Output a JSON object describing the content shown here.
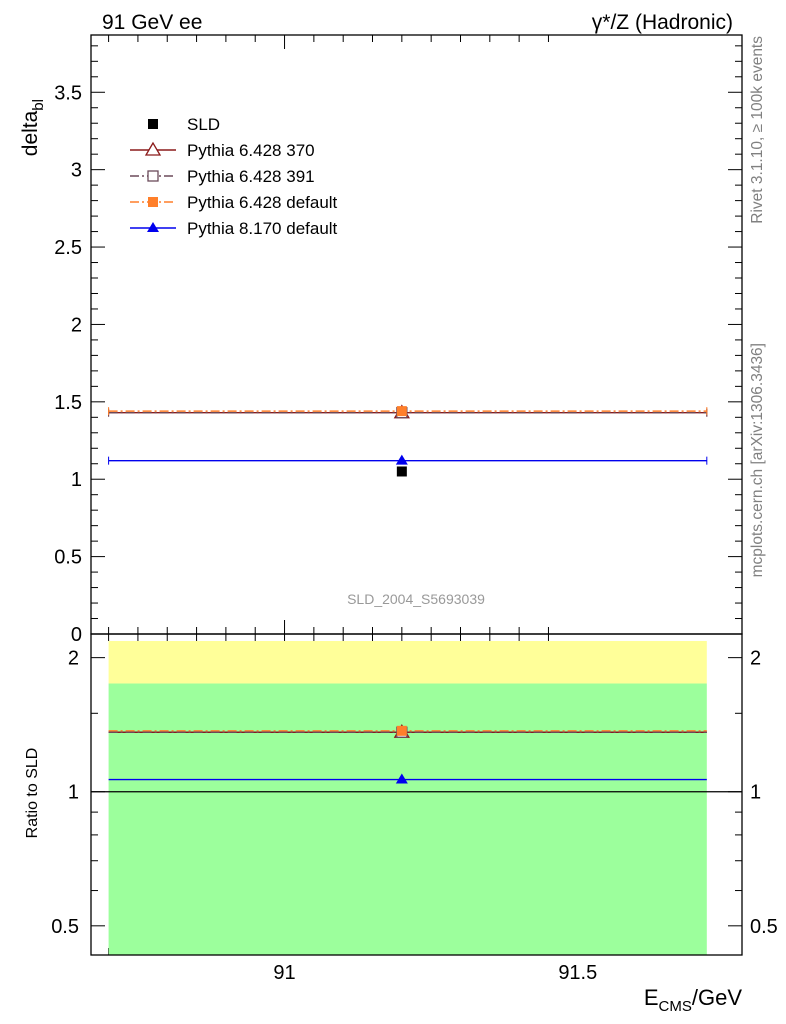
{
  "header": {
    "left": "91 GeV ee",
    "right": "γ*/Z (Hadronic)"
  },
  "side": {
    "rivet": "Rivet 3.1.10, ≥ 100k events",
    "mcplots": "mcplots.cern.ch [arXiv:1306.3436]"
  },
  "watermark": "SLD_2004_S5693039",
  "chart_data": [
    {
      "type": "scatter",
      "panel": "main",
      "ylabel": "delta",
      "ylabel_sub": "bl",
      "xlim": [
        90.67,
        91.78
      ],
      "ylim": [
        0,
        3.87
      ],
      "yticks": [
        0,
        0.5,
        1,
        1.5,
        2,
        2.5,
        3,
        3.5
      ],
      "ytick_labels": [
        "0",
        "0.5",
        "1",
        "1.5",
        "2",
        "2.5",
        "3",
        "3.5"
      ],
      "series": [
        {
          "name": "SLD",
          "x": 91.2,
          "y": 1.05,
          "color": "#000000",
          "marker": "filled-square"
        },
        {
          "name": "Pythia 6.428 370",
          "x": 91.2,
          "y": 1.43,
          "xerr": [
            90.7,
            91.72
          ],
          "color": "#8b1a1a",
          "marker": "open-triangle",
          "dash": "solid"
        },
        {
          "name": "Pythia 6.428 391",
          "x": 91.2,
          "y": 1.43,
          "xerr": [
            90.7,
            91.72
          ],
          "color": "#6b4a5a",
          "marker": "open-square",
          "dash": "dashdot"
        },
        {
          "name": "Pythia 6.428 default",
          "x": 91.2,
          "y": 1.44,
          "xerr": [
            90.7,
            91.72
          ],
          "color": "#ff7f2a",
          "marker": "filled-square",
          "dash": "dashdot"
        },
        {
          "name": "Pythia 8.170 default",
          "x": 91.2,
          "y": 1.12,
          "xerr": [
            90.7,
            91.72
          ],
          "color": "#0000ee",
          "marker": "filled-triangle",
          "dash": "solid"
        }
      ],
      "legend": "top-left"
    },
    {
      "type": "scatter",
      "panel": "ratio",
      "ylabel": "Ratio to SLD",
      "xlabel": "E",
      "xlabel_sub": "CMS",
      "xlabel_suffix": "/GeV",
      "scale": "log",
      "xlim": [
        90.67,
        91.78
      ],
      "ylim": [
        0.43,
        2.26
      ],
      "xticks": [
        91,
        91.5
      ],
      "xtick_labels": [
        "91",
        "91.5"
      ],
      "yticks": [
        0.5,
        1,
        2
      ],
      "ytick_labels": [
        "0.5",
        "1",
        "2"
      ],
      "bands": [
        {
          "ymin": 0.43,
          "ymax": 1.75,
          "color": "#9cff9c"
        },
        {
          "ymin": 1.75,
          "ymax": 2.18,
          "color": "#ffff99"
        }
      ],
      "xband": [
        90.7,
        91.72
      ],
      "series": [
        {
          "name": "Pythia 6.428 370",
          "y": 1.36
        },
        {
          "name": "Pythia 6.428 391",
          "y": 1.36
        },
        {
          "name": "Pythia 6.428 default",
          "y": 1.37
        },
        {
          "name": "Pythia 8.170 default",
          "y": 1.065
        }
      ]
    }
  ]
}
